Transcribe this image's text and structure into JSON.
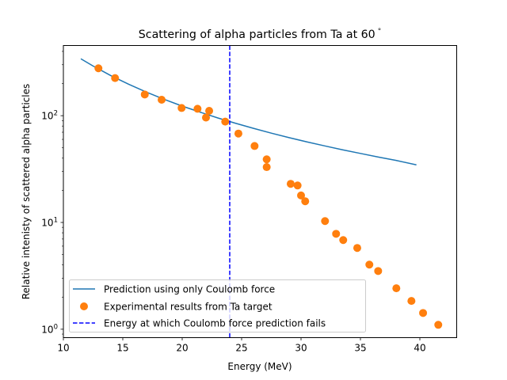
{
  "chart_data": {
    "type": "scatter",
    "title": "Scattering of alpha particles from Ta at 60",
    "title_suffix": "°",
    "xlabel": "Energy (MeV)",
    "ylabel": "Relative intenisty of scattered alpha particles",
    "xscale": "linear",
    "yscale": "log",
    "xlim": [
      10,
      43.1
    ],
    "ylim": [
      0.834,
      454
    ],
    "xticks": [
      10,
      15,
      20,
      25,
      30,
      35,
      40
    ],
    "xtick_labels": [
      "10",
      "15",
      "20",
      "25",
      "30",
      "35",
      "40"
    ],
    "yticks": [
      1,
      10,
      100
    ],
    "ytick_labels": [
      {
        "base": "10",
        "exp": "0"
      },
      {
        "base": "10",
        "exp": "1"
      },
      {
        "base": "10",
        "exp": "2"
      }
    ],
    "grid": false,
    "legend_position": "lower-left",
    "series": [
      {
        "name": "Prediction using only Coulomb force",
        "kind": "line",
        "color": "#1f77b4",
        "x": [
          11.47,
          12.5,
          14,
          15.5,
          17,
          18.5,
          20,
          21.5,
          23,
          24.5,
          26,
          27.5,
          29,
          30.5,
          32,
          33.5,
          35,
          36.5,
          38,
          39.71
        ],
        "y": [
          341,
          292,
          237,
          197,
          166,
          142,
          123,
          108,
          95.2,
          84.8,
          76.1,
          68.6,
          62.3,
          56.8,
          52.1,
          47.9,
          44.3,
          41.0,
          38.1,
          34.6
        ]
      },
      {
        "name": "Experimental results from Ta target",
        "kind": "scatter",
        "color": "#ff7f0e",
        "x": [
          12.95,
          14.35,
          16.85,
          18.27,
          19.95,
          21.29,
          22.27,
          22.0,
          23.62,
          24.73,
          26.09,
          27.11,
          27.11,
          29.13,
          29.71,
          30.0,
          30.35,
          32.02,
          32.95,
          33.55,
          34.73,
          35.75,
          36.49,
          38.02,
          39.29,
          40.27,
          41.55
        ],
        "y": [
          278,
          225,
          158,
          141,
          118,
          116,
          111,
          96,
          88,
          68,
          52,
          39,
          33,
          23,
          22.2,
          17.9,
          15.8,
          10.3,
          7.83,
          6.84,
          5.77,
          4.03,
          3.51,
          2.42,
          1.84,
          1.42,
          1.1
        ]
      },
      {
        "name": "Energy at which Coulomb force prediction fails",
        "kind": "vline",
        "color": "#0000ff",
        "linestyle": "dashed",
        "x": 24.0
      }
    ]
  }
}
